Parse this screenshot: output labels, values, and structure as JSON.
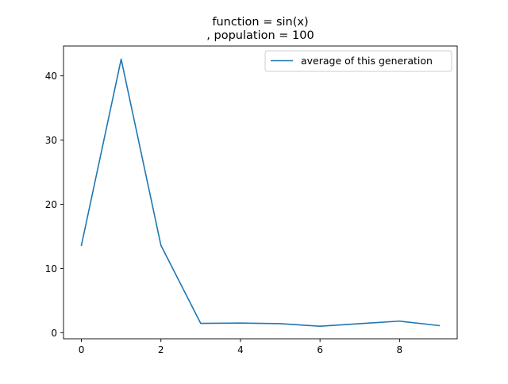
{
  "chart_data": {
    "type": "line",
    "title_lines": [
      "function =  sin(x)",
      ", population = 100"
    ],
    "xlabel": "",
    "ylabel": "",
    "xlim": [
      -0.45,
      9.45
    ],
    "ylim": [
      -0.95,
      44.65
    ],
    "xticks": [
      0,
      2,
      4,
      6,
      8
    ],
    "yticks": [
      0,
      10,
      20,
      30,
      40
    ],
    "grid": false,
    "legend": {
      "placement": "top-right"
    },
    "series": [
      {
        "name": "average of this generation",
        "color": "#1f77b4",
        "x": [
          0,
          1,
          2,
          3,
          4,
          5,
          6,
          7,
          8,
          9
        ],
        "y": [
          13.6,
          42.6,
          13.6,
          1.45,
          1.5,
          1.4,
          1.0,
          1.4,
          1.8,
          1.1
        ]
      }
    ]
  }
}
